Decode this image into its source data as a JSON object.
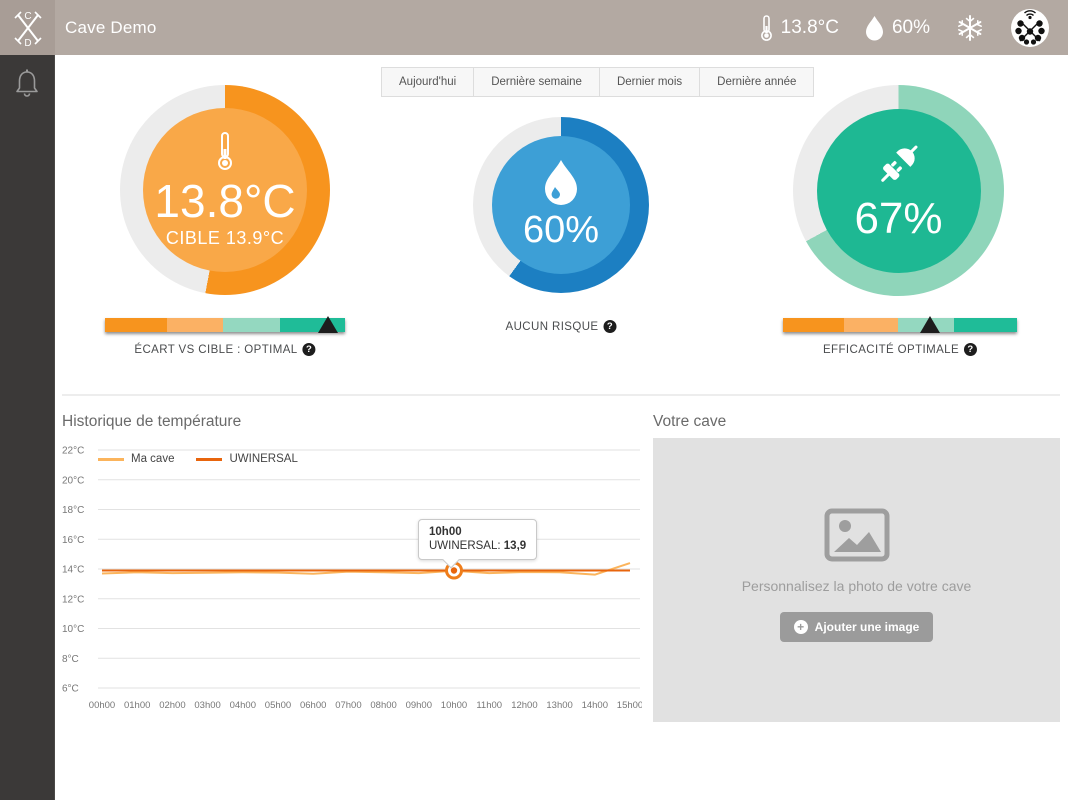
{
  "header": {
    "title": "Cave Demo",
    "temperature": "13.8°C",
    "humidity": "60%"
  },
  "icons": {
    "help": "?",
    "plus": "+"
  },
  "tabs": [
    {
      "label": "Aujourd'hui"
    },
    {
      "label": "Dernière semaine"
    },
    {
      "label": "Dernier mois"
    },
    {
      "label": "Dernière année"
    }
  ],
  "gauges": {
    "temperature": {
      "value": "13.8°C",
      "target": "CIBLE 13.9°C",
      "percent": 53,
      "ring_color": "#f7941e",
      "empty_color": "#ececec",
      "center_color": "#f9a848",
      "status": "ÉCART VS CIBLE : OPTIMAL",
      "marker_percent": 93
    },
    "humidity": {
      "value": "60%",
      "percent": 60,
      "ring_color": "#1c7fc2",
      "empty_color": "#ececec",
      "center_color": "#3d9fd6",
      "status": "AUCUN RISQUE"
    },
    "energy": {
      "value": "67%",
      "percent": 67,
      "ring_color": "#8fd5ba",
      "empty_color": "#ececec",
      "center_color": "#1eb893",
      "status": "EFFICACITÉ OPTIMALE",
      "marker_percent": 63
    }
  },
  "scale_colors": [
    "#f7941e",
    "#fbb164",
    "#94d8c0",
    "#1fbc98"
  ],
  "scale_stops": [
    26,
    49,
    73,
    100
  ],
  "chart_data": {
    "type": "line",
    "title": "Historique de température",
    "x": [
      "00h00",
      "01h00",
      "02h00",
      "03h00",
      "04h00",
      "05h00",
      "06h00",
      "07h00",
      "08h00",
      "09h00",
      "10h00",
      "11h00",
      "12h00",
      "13h00",
      "14h00",
      "15h00"
    ],
    "ylim": [
      6,
      22
    ],
    "yticks": [
      22,
      20,
      18,
      16,
      14,
      12,
      10,
      8,
      6
    ],
    "ytick_suffix": "°C",
    "grid": true,
    "legend_position": "top-left",
    "series": [
      {
        "name": "Ma cave",
        "color": "#fbb45c",
        "values": [
          13.7,
          13.78,
          13.72,
          13.75,
          13.78,
          13.76,
          13.68,
          13.82,
          13.78,
          13.72,
          13.88,
          13.72,
          13.8,
          13.78,
          13.62,
          14.4
        ]
      },
      {
        "name": "UWINERSAL",
        "color": "#e8650d",
        "values": [
          13.9,
          13.9,
          13.9,
          13.9,
          13.9,
          13.9,
          13.9,
          13.9,
          13.9,
          13.9,
          13.9,
          13.9,
          13.9,
          13.9,
          13.9,
          13.9
        ]
      }
    ],
    "tooltip": {
      "time": "10h00",
      "label": "UWINERSAL:",
      "value": "13,9",
      "x_index": 10,
      "y_value": 13.9
    }
  },
  "cave_photo": {
    "title": "Votre cave",
    "placeholder": "Personnalisez la photo de votre cave",
    "button": "Ajouter une image"
  }
}
